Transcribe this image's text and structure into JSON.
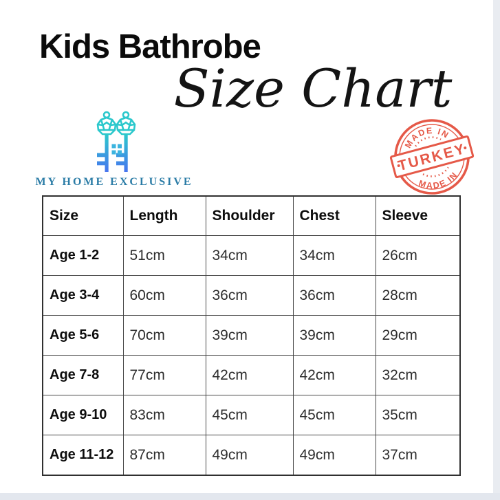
{
  "header": {
    "title": "Kids Bathrobe",
    "subtitle": "Size Chart"
  },
  "brand": {
    "name": "MY HOME EXCLUSIVE",
    "logo_icon": "double-keys-with-window-icon",
    "key_color_top": "#2BC8CC",
    "key_color_bottom": "#4A6FF2",
    "window_color": "#3CB4DF",
    "text_color": "#2B7CA6"
  },
  "stamp": {
    "top": "MADE IN",
    "center": "TURKEY",
    "bottom": "MADE IN",
    "color": "#E4513F"
  },
  "chart_data": {
    "type": "table",
    "title": "Kids Bathrobe Size Chart",
    "columns": [
      "Size",
      "Length",
      "Shoulder",
      "Chest",
      "Sleeve"
    ],
    "rows": [
      [
        "Age 1-2",
        "51cm",
        "34cm",
        "34cm",
        "26cm"
      ],
      [
        "Age 3-4",
        "60cm",
        "36cm",
        "36cm",
        "28cm"
      ],
      [
        "Age 5-6",
        "70cm",
        "39cm",
        "39cm",
        "29cm"
      ],
      [
        "Age 7-8",
        "77cm",
        "42cm",
        "42cm",
        "32cm"
      ],
      [
        "Age 9-10",
        "83cm",
        "45cm",
        "45cm",
        "35cm"
      ],
      [
        "Age 11-12",
        "87cm",
        "49cm",
        "49cm",
        "37cm"
      ]
    ]
  }
}
